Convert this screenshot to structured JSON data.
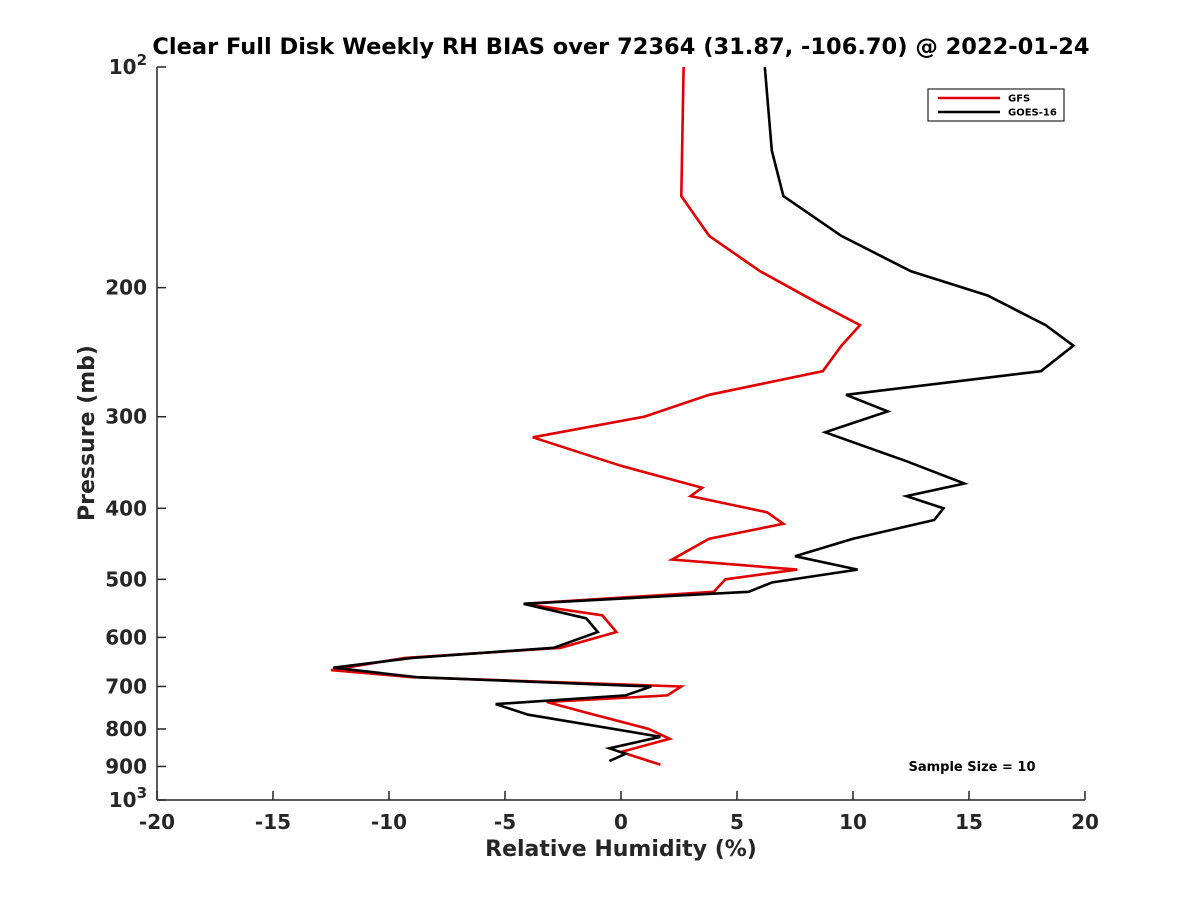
{
  "chart_data": {
    "type": "line",
    "title": "Clear Full Disk Weekly RH BIAS over 72364 (31.87, -106.70) @ 2022-01-24",
    "xlabel": "Relative Humidity (%)",
    "ylabel": "Pressure (mb)",
    "xlim": [
      -20,
      20
    ],
    "ylim": [
      100,
      1000
    ],
    "y_scale": "log",
    "y_reversed": true,
    "grid": false,
    "legend_position": "top-right",
    "x_ticks": [
      -20,
      -15,
      -10,
      -5,
      0,
      5,
      10,
      15,
      20
    ],
    "x_tick_labels": [
      "-20",
      "-15",
      "-10",
      "-5",
      "0",
      "5",
      "10",
      "15",
      "20"
    ],
    "y_ticks": [
      200,
      300,
      400,
      500,
      600,
      700,
      800,
      900
    ],
    "y_tick_labels": [
      "200",
      "300",
      "400",
      "500",
      "600",
      "700",
      "800",
      "900"
    ],
    "y_limit_labels": {
      "top": {
        "base": "10",
        "exp": "2"
      },
      "bottom": {
        "base": "10",
        "exp": "3"
      }
    },
    "series": [
      {
        "name": "GFS",
        "color": "#e00000",
        "points": [
          [
            2.7,
            100
          ],
          [
            2.6,
            150
          ],
          [
            3.8,
            170
          ],
          [
            6.0,
            190
          ],
          [
            8.5,
            210
          ],
          [
            10.3,
            225
          ],
          [
            9.5,
            240
          ],
          [
            8.7,
            260
          ],
          [
            3.8,
            280
          ],
          [
            1.0,
            300
          ],
          [
            -3.8,
            320
          ],
          [
            0.0,
            350
          ],
          [
            3.5,
            375
          ],
          [
            3.0,
            385
          ],
          [
            6.3,
            405
          ],
          [
            7.0,
            420
          ],
          [
            3.8,
            440
          ],
          [
            2.2,
            470
          ],
          [
            7.6,
            485
          ],
          [
            4.5,
            500
          ],
          [
            4.0,
            520
          ],
          [
            -4.2,
            540
          ],
          [
            -0.8,
            560
          ],
          [
            -0.2,
            590
          ],
          [
            -2.6,
            620
          ],
          [
            -9.3,
            640
          ],
          [
            -12.5,
            665
          ],
          [
            -9.0,
            680
          ],
          [
            2.6,
            700
          ],
          [
            2.0,
            720
          ],
          [
            -3.2,
            735
          ],
          [
            -1.5,
            760
          ],
          [
            1.2,
            800
          ],
          [
            2.1,
            825
          ],
          [
            0.0,
            860
          ],
          [
            1.7,
            895
          ]
        ]
      },
      {
        "name": "GOES-16",
        "color": "#000000",
        "points": [
          [
            6.2,
            100
          ],
          [
            6.5,
            130
          ],
          [
            7.0,
            150
          ],
          [
            9.5,
            170
          ],
          [
            12.5,
            190
          ],
          [
            15.8,
            205
          ],
          [
            18.3,
            225
          ],
          [
            19.5,
            240
          ],
          [
            18.1,
            260
          ],
          [
            9.7,
            280
          ],
          [
            11.5,
            295
          ],
          [
            8.8,
            315
          ],
          [
            12.3,
            345
          ],
          [
            14.8,
            370
          ],
          [
            12.3,
            385
          ],
          [
            13.9,
            400
          ],
          [
            13.5,
            415
          ],
          [
            10.0,
            440
          ],
          [
            7.5,
            465
          ],
          [
            10.2,
            485
          ],
          [
            6.5,
            505
          ],
          [
            5.5,
            520
          ],
          [
            -4.2,
            540
          ],
          [
            -1.5,
            565
          ],
          [
            -1.0,
            590
          ],
          [
            -2.9,
            620
          ],
          [
            -9.0,
            640
          ],
          [
            -12.4,
            660
          ],
          [
            -8.8,
            680
          ],
          [
            1.3,
            700
          ],
          [
            0.2,
            720
          ],
          [
            -5.4,
            740
          ],
          [
            -4.0,
            765
          ],
          [
            1.7,
            820
          ],
          [
            -0.5,
            850
          ],
          [
            0.2,
            865
          ],
          [
            -0.5,
            885
          ]
        ]
      }
    ],
    "annotation": "Sample Size = 10"
  }
}
